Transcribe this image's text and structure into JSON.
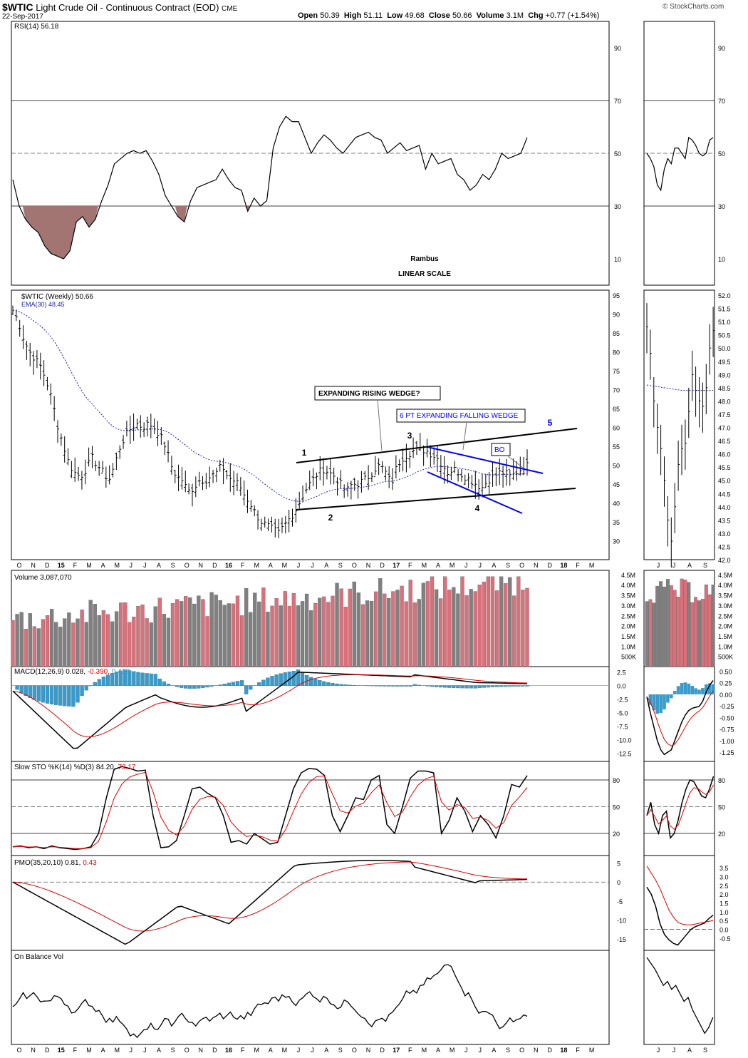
{
  "header": {
    "symbol": "$WTIC",
    "name": "Light Crude Oil - Continuous Contract (EOD)",
    "exchange": "CME",
    "date": "22-Sep-2017",
    "open_label": "Open",
    "open": "50.39",
    "high_label": "High",
    "high": "51.11",
    "low_label": "Low",
    "low": "49.68",
    "close_label": "Close",
    "close": "50.66",
    "volume_label": "Volume",
    "volume": "3.1M",
    "chg_label": "Chg",
    "chg": "+0.77 (+1.54%)",
    "credit": "© StockCharts.com"
  },
  "colors": {
    "up_volume": "#d9707a",
    "down_volume": "#808080",
    "macd_hist": "#3a9ac9",
    "signal": "#e00000",
    "ema": "#2222aa",
    "blue_line": "#0000ff",
    "rsi_fill": "#a27572"
  },
  "x_axis": {
    "main_labels": [
      "O",
      "N",
      "D",
      "15",
      "F",
      "M",
      "A",
      "M",
      "J",
      "J",
      "A",
      "S",
      "O",
      "N",
      "D",
      "16",
      "F",
      "M",
      "A",
      "M",
      "J",
      "J",
      "A",
      "S",
      "O",
      "N",
      "D",
      "17",
      "F",
      "M",
      "A",
      "M",
      "J",
      "J",
      "A",
      "S",
      "O",
      "N",
      "D",
      "18",
      "F",
      "M"
    ],
    "bold_labels": [
      "15",
      "16",
      "17",
      "18"
    ],
    "inset_labels": [
      "J",
      "J",
      "A",
      "S"
    ]
  },
  "rsi_panel": {
    "title": "RSI(14) 56.18",
    "ticks": [
      "90",
      "70",
      "50",
      "30",
      "10"
    ],
    "ref_lines": [
      "70",
      "50",
      "30"
    ],
    "annotations": [
      "Rambus",
      "LINEAR SCALE"
    ]
  },
  "price_panel": {
    "title": "$WTIC (Weekly) 50.66",
    "ema_label": "EMA(30) 48.45",
    "ticks": [
      "95",
      "90",
      "85",
      "80",
      "75",
      "70",
      "65",
      "60",
      "55",
      "50",
      "45",
      "40",
      "35",
      "30"
    ],
    "inset_ticks": [
      "52.0",
      "51.5",
      "51.0",
      "50.5",
      "50.0",
      "49.5",
      "49.0",
      "48.5",
      "48.0",
      "47.5",
      "47.0",
      "46.5",
      "46.0",
      "45.5",
      "45.0",
      "44.5",
      "44.0",
      "43.5",
      "43.0",
      "42.5",
      "42.0"
    ],
    "annotations": {
      "rising_wedge": "EXPANDING RISING WEDGE?",
      "falling_wedge": "6 PT EXPANDING FALLING WEDGE",
      "bo": "BO",
      "points": [
        "1",
        "2",
        "3",
        "4",
        "5"
      ]
    }
  },
  "volume_panel": {
    "title": "Volume 3,087,070",
    "ticks": [
      "4.5M",
      "4.0M",
      "3.5M",
      "3.0M",
      "2.5M",
      "2.0M",
      "1.5M",
      "1.0M",
      "500K"
    ]
  },
  "macd_panel": {
    "title_prefix": "MACD(12,26,9)",
    "v1": "0.028",
    "v2": "-0.390",
    "v3": "0.418",
    "ticks": [
      "2.5",
      "0.0",
      "-2.5",
      "-5.0",
      "-7.5",
      "-10.0",
      "-12.5"
    ],
    "inset_ticks": [
      "0.50",
      "0.25",
      "0.00",
      "-0.25",
      "-0.50",
      "-0.75",
      "-1.00",
      "-1.25"
    ]
  },
  "sto_panel": {
    "title_prefix": "Slow STO %K(14) %D(3)",
    "k": "84.20",
    "d": "73.17",
    "ticks": [
      "80",
      "50",
      "20"
    ]
  },
  "pmo_panel": {
    "title_prefix": "PMO(35,20,10)",
    "v1": "0.81",
    "v2": "0.43",
    "ticks": [
      "5",
      "0",
      "-5",
      "-10",
      "-15"
    ],
    "inset_ticks": [
      "3.5",
      "3.0",
      "2.5",
      "2.0",
      "1.5",
      "1.0",
      "0.5",
      "0.0",
      "-0.5"
    ]
  },
  "obv_panel": {
    "title": "On Balance Vol"
  },
  "chart_data": [
    {
      "type": "line",
      "name": "RSI(14)",
      "ylim": [
        0,
        100
      ],
      "x_range": [
        "2014-10",
        "2017-09"
      ],
      "values": [
        40,
        30,
        25,
        22,
        20,
        15,
        12,
        11,
        10,
        13,
        24,
        26,
        22,
        25,
        32,
        38,
        46,
        48,
        50,
        51,
        50,
        51,
        47,
        42,
        34,
        30,
        26,
        24,
        32,
        37,
        38,
        39,
        40,
        44,
        40,
        37,
        36,
        28,
        33,
        30,
        32,
        52,
        60,
        64,
        62,
        62,
        56,
        50,
        54,
        57,
        55,
        52,
        50,
        53,
        56,
        57,
        58,
        56,
        55,
        50,
        52,
        54,
        51,
        52,
        53,
        44,
        50,
        46,
        47,
        48,
        42,
        40,
        36,
        38,
        42,
        40,
        44,
        50,
        48,
        49,
        50,
        56
      ],
      "ref_lines": [
        70,
        50,
        30
      ]
    },
    {
      "type": "line",
      "name": "$WTIC (Weekly)",
      "ylim": [
        25,
        95
      ],
      "x_range": [
        "2014-10",
        "2017-09"
      ],
      "values": [
        91,
        88,
        83,
        80,
        78,
        76,
        72,
        67,
        60,
        55,
        50,
        48,
        47,
        49,
        52,
        50,
        48,
        46,
        50,
        55,
        58,
        60,
        61,
        60,
        61,
        60,
        58,
        55,
        50,
        47,
        46,
        43,
        44,
        46,
        46,
        47,
        48,
        50,
        47,
        46,
        45,
        42,
        40,
        37,
        35,
        34,
        33,
        32,
        34,
        36,
        38,
        41,
        44,
        46,
        48,
        49,
        48,
        47,
        45,
        43,
        45,
        45,
        46,
        47,
        49,
        50,
        48,
        45,
        50,
        52,
        53,
        54,
        54,
        54,
        53,
        52,
        50,
        48,
        49,
        48,
        47,
        46,
        45,
        44,
        46,
        47,
        48,
        48,
        47,
        48,
        49,
        50.66
      ],
      "ema30_last": 48.45
    },
    {
      "type": "bar",
      "name": "Volume",
      "ylim": [
        0,
        4500000
      ],
      "last_value": 3087070
    },
    {
      "type": "line",
      "name": "MACD(12,26,9)",
      "ylim": [
        -13,
        3
      ],
      "series": [
        {
          "name": "MACD",
          "last": 0.028
        },
        {
          "name": "Signal",
          "last": -0.39
        },
        {
          "name": "Histogram",
          "last": 0.418
        }
      ]
    },
    {
      "type": "line",
      "name": "Slow STO",
      "ylim": [
        0,
        100
      ],
      "series": [
        {
          "name": "%K(14)",
          "last": 84.2
        },
        {
          "name": "%D(3)",
          "last": 73.17
        }
      ],
      "ref_lines": [
        80,
        50,
        20
      ]
    },
    {
      "type": "line",
      "name": "PMO(35,20,10)",
      "ylim": [
        -17,
        7
      ],
      "series": [
        {
          "name": "PMO",
          "last": 0.81
        },
        {
          "name": "Signal",
          "last": 0.43
        }
      ]
    },
    {
      "type": "line",
      "name": "On Balance Vol"
    }
  ]
}
